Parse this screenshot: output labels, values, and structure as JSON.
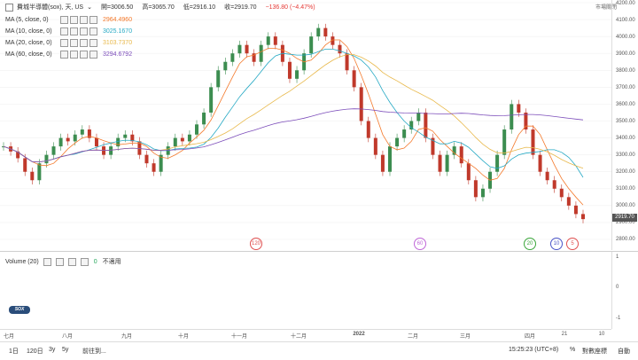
{
  "header": {
    "symbol_title": "費城半導體(sox), 天, US",
    "open": "開=3006.50",
    "high": "高=3065.70",
    "low": "低=2916.10",
    "close": "收=2919.70",
    "change": "−136.80 (−4.47%)",
    "currency": "市場關閉"
  },
  "ma": [
    {
      "label": "MA (5, close, 0)",
      "value": "2964.4960",
      "color": "#f4792b"
    },
    {
      "label": "MA (10, close, 0)",
      "value": "3025.1670",
      "color": "#26a9c4"
    },
    {
      "label": "MA (20, close, 0)",
      "value": "3103.7370",
      "color": "#e8b84a"
    },
    {
      "label": "MA (60, close, 0)",
      "value": "3294.6792",
      "color": "#7c4dba"
    }
  ],
  "price_axis": [
    "4200.00",
    "4100.00",
    "4000.00",
    "3900.00",
    "3800.00",
    "3700.00",
    "3600.00",
    "3500.00",
    "3400.00",
    "3300.00",
    "3200.00",
    "3100.00",
    "3000.00",
    "2900.00",
    "2800.00"
  ],
  "last_price": "2919.70",
  "volume": {
    "label": "Volume (20)",
    "value": "0",
    "status": "不適用"
  },
  "volume_axis": [
    "1",
    "0",
    "-1"
  ],
  "time_axis": [
    "七月",
    "八月",
    "九月",
    "十月",
    "十一月",
    "十二月",
    "2022",
    "二月",
    "三月",
    "四月",
    "21",
    "10"
  ],
  "markers": [
    {
      "label": "120",
      "color": "#e05050"
    },
    {
      "label": "60",
      "color": "#c066d8"
    },
    {
      "label": "20",
      "color": "#3aa63a"
    },
    {
      "label": "10",
      "color": "#4a55c8"
    },
    {
      "label": "5",
      "color": "#e05050"
    }
  ],
  "bottom_bar": {
    "ranges": [
      "1日",
      "120日",
      "3y",
      "5y"
    ],
    "goto": "前往到...",
    "time": "15:25:23 (UTC+8)",
    "percent": "%",
    "log": "對數座標",
    "auto": "自動"
  },
  "chart_data": {
    "type": "candlestick",
    "series_colors": {
      "up": "#3c8d50",
      "down": "#c0392b"
    },
    "ylim": [
      2800,
      4200
    ],
    "closes_approx": [
      3350,
      3320,
      3280,
      3200,
      3150,
      3250,
      3300,
      3350,
      3400,
      3380,
      3420,
      3450,
      3400,
      3350,
      3300,
      3350,
      3400,
      3420,
      3380,
      3300,
      3250,
      3200,
      3300,
      3350,
      3400,
      3380,
      3420,
      3480,
      3550,
      3700,
      3800,
      3850,
      3900,
      3950,
      3900,
      3850,
      3950,
      4000,
      3950,
      3850,
      3750,
      3800,
      3900,
      4000,
      4050,
      4000,
      3950,
      3900,
      3800,
      3700,
      3500,
      3400,
      3300,
      3200,
      3350,
      3400,
      3450,
      3500,
      3550,
      3400,
      3300,
      3200,
      3300,
      3350,
      3250,
      3150,
      3050,
      3100,
      3200,
      3300,
      3450,
      3600,
      3550,
      3450,
      3300,
      3200,
      3150,
      3100,
      3050,
      3000,
      2950,
      2920
    ]
  }
}
